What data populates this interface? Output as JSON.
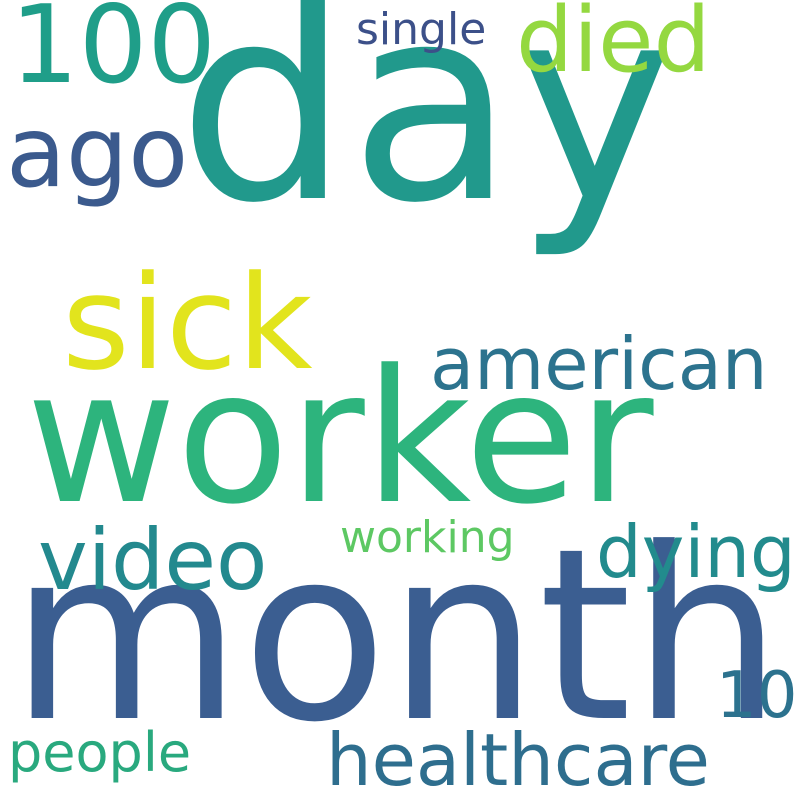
{
  "words": [
    {
      "text": "day",
      "color": "#21998c"
    },
    {
      "text": "month",
      "color": "#3b5e91"
    },
    {
      "text": "worker",
      "color": "#2db47d"
    },
    {
      "text": "sick",
      "color": "#e2e41d"
    },
    {
      "text": "100",
      "color": "#1f9e89"
    },
    {
      "text": "died",
      "color": "#94d840"
    },
    {
      "text": "ago",
      "color": "#3b5a8d"
    },
    {
      "text": "single",
      "color": "#3c5089"
    },
    {
      "text": "american",
      "color": "#2c738e"
    },
    {
      "text": "video",
      "color": "#23898e"
    },
    {
      "text": "dying",
      "color": "#228b8d"
    },
    {
      "text": "working",
      "color": "#5dc863"
    },
    {
      "text": "10",
      "color": "#2c728e"
    },
    {
      "text": "healthcare",
      "color": "#2e6e8e"
    },
    {
      "text": "people",
      "color": "#29a97e"
    }
  ]
}
